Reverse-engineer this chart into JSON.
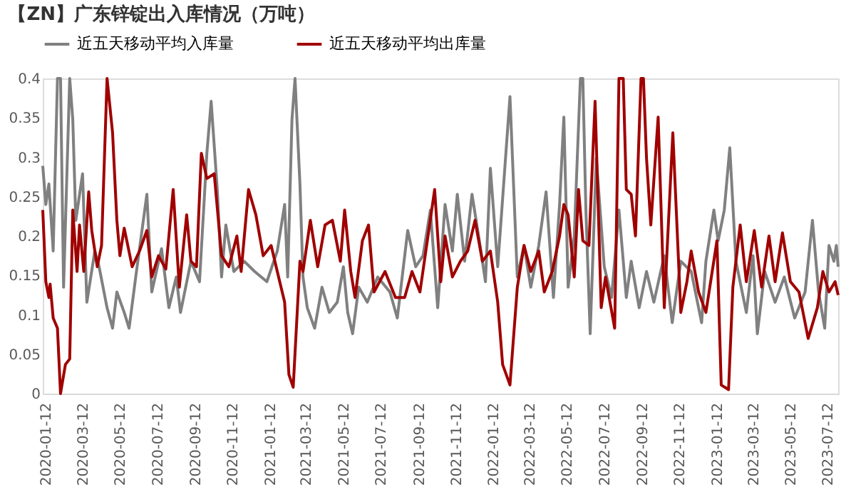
{
  "chart_data": {
    "type": "line",
    "title": "【ZN】广东锌锭出入库情况（万吨）",
    "legend": "top",
    "grid": false,
    "xlim": [
      "2020-01-07",
      "2023-07-29"
    ],
    "xticks": [
      "2020-01-12",
      "2020-03-12",
      "2020-05-12",
      "2020-07-12",
      "2020-09-12",
      "2020-11-12",
      "2021-01-12",
      "2021-03-12",
      "2021-05-12",
      "2021-07-12",
      "2021-09-12",
      "2021-11-12",
      "2022-01-12",
      "2022-03-12",
      "2022-05-12",
      "2022-07-12",
      "2022-09-12",
      "2022-11-12",
      "2023-01-12",
      "2023-03-12",
      "2023-05-12",
      "2023-07-12"
    ],
    "ylim": [
      0,
      0.4
    ],
    "yticks": [
      0,
      0.05,
      0.1,
      0.15,
      0.2,
      0.25,
      0.3,
      0.35,
      0.4
    ],
    "series": [
      {
        "name": "近五天移动平均入库量",
        "color": "#808080",
        "x": [
          "2020-01-07",
          "2020-01-12",
          "2020-01-17",
          "2020-01-24",
          "2020-01-31",
          "2020-02-05",
          "2020-02-10",
          "2020-02-20",
          "2020-02-25",
          "2020-03-01",
          "2020-03-12",
          "2020-03-19",
          "2020-04-01",
          "2020-04-08",
          "2020-04-21",
          "2020-04-30",
          "2020-05-07",
          "2020-05-19",
          "2020-05-27",
          "2020-06-08",
          "2020-06-25",
          "2020-07-03",
          "2020-07-19",
          "2020-07-31",
          "2020-08-12",
          "2020-08-19",
          "2020-09-05",
          "2020-09-19",
          "2020-10-01",
          "2020-10-08",
          "2020-10-18",
          "2020-10-25",
          "2020-11-01",
          "2020-11-14",
          "2020-12-01",
          "2020-12-18",
          "2021-01-07",
          "2021-01-24",
          "2021-02-05",
          "2021-02-10",
          "2021-02-17",
          "2021-02-22",
          "2021-03-02",
          "2021-03-07",
          "2021-03-14",
          "2021-03-26",
          "2021-04-07",
          "2021-04-19",
          "2021-05-02",
          "2021-05-12",
          "2021-05-19",
          "2021-05-27",
          "2021-06-06",
          "2021-06-20",
          "2021-07-07",
          "2021-07-27",
          "2021-08-08",
          "2021-08-25",
          "2021-09-07",
          "2021-09-19",
          "2021-10-01",
          "2021-10-13",
          "2021-10-25",
          "2021-11-06",
          "2021-11-14",
          "2021-11-26",
          "2021-12-08",
          "2021-12-20",
          "2021-12-30",
          "2022-01-07",
          "2022-01-19",
          "2022-02-08",
          "2022-02-20",
          "2022-03-03",
          "2022-03-14",
          "2022-03-27",
          "2022-04-08",
          "2022-04-20",
          "2022-04-30",
          "2022-05-07",
          "2022-05-14",
          "2022-05-24",
          "2022-06-03",
          "2022-06-07",
          "2022-06-12",
          "2022-06-19",
          "2022-06-29",
          "2022-07-12",
          "2022-07-24",
          "2022-08-05",
          "2022-08-17",
          "2022-08-25",
          "2022-09-07",
          "2022-09-19",
          "2022-10-01",
          "2022-10-18",
          "2022-10-31",
          "2022-11-14",
          "2022-12-01",
          "2022-12-18",
          "2022-12-25",
          "2023-01-07",
          "2023-01-14",
          "2023-01-24",
          "2023-02-02",
          "2023-02-12",
          "2023-03-01",
          "2023-03-12",
          "2023-03-19",
          "2023-03-31",
          "2023-04-17",
          "2023-05-02",
          "2023-05-19",
          "2023-06-05",
          "2023-06-17",
          "2023-06-27",
          "2023-07-07",
          "2023-07-14",
          "2023-07-22",
          "2023-07-26",
          "2023-07-29"
        ],
        "values": [
          0.289,
          0.24,
          0.266,
          0.181,
          0.4,
          0.4,
          0.135,
          0.4,
          0.348,
          0.22,
          0.279,
          0.116,
          0.181,
          0.161,
          0.109,
          0.083,
          0.129,
          0.103,
          0.083,
          0.155,
          0.253,
          0.129,
          0.184,
          0.109,
          0.148,
          0.103,
          0.168,
          0.142,
          0.305,
          0.371,
          0.259,
          0.148,
          0.214,
          0.155,
          0.168,
          0.155,
          0.142,
          0.181,
          0.24,
          0.148,
          0.348,
          0.4,
          0.266,
          0.148,
          0.109,
          0.083,
          0.135,
          0.103,
          0.116,
          0.161,
          0.103,
          0.076,
          0.135,
          0.116,
          0.148,
          0.129,
          0.096,
          0.207,
          0.161,
          0.175,
          0.233,
          0.109,
          0.24,
          0.181,
          0.253,
          0.168,
          0.253,
          0.194,
          0.142,
          0.286,
          0.161,
          0.377,
          0.148,
          0.188,
          0.135,
          0.188,
          0.256,
          0.122,
          0.24,
          0.351,
          0.135,
          0.2,
          0.4,
          0.4,
          0.233,
          0.076,
          0.299,
          0.161,
          0.122,
          0.233,
          0.122,
          0.168,
          0.109,
          0.155,
          0.116,
          0.175,
          0.09,
          0.168,
          0.155,
          0.09,
          0.168,
          0.233,
          0.194,
          0.233,
          0.312,
          0.168,
          0.103,
          0.175,
          0.076,
          0.155,
          0.116,
          0.148,
          0.096,
          0.129,
          0.22,
          0.129,
          0.083,
          0.188,
          0.168,
          0.188,
          0.161
        ]
      },
      {
        "name": "近五天移动平均出库量",
        "color": "#a00000",
        "x": [
          "2020-01-07",
          "2020-01-12",
          "2020-01-17",
          "2020-01-19",
          "2020-01-24",
          "2020-01-31",
          "2020-02-05",
          "2020-02-13",
          "2020-02-20",
          "2020-02-25",
          "2020-03-03",
          "2020-03-07",
          "2020-03-14",
          "2020-03-22",
          "2020-03-27",
          "2020-04-05",
          "2020-04-12",
          "2020-04-21",
          "2020-04-30",
          "2020-05-07",
          "2020-05-12",
          "2020-05-19",
          "2020-06-01",
          "2020-06-13",
          "2020-06-25",
          "2020-07-03",
          "2020-07-14",
          "2020-07-26",
          "2020-08-07",
          "2020-08-17",
          "2020-08-29",
          "2020-09-05",
          "2020-09-14",
          "2020-09-22",
          "2020-10-01",
          "2020-10-13",
          "2020-10-25",
          "2020-11-06",
          "2020-11-19",
          "2020-11-26",
          "2020-12-08",
          "2020-12-20",
          "2021-01-01",
          "2021-01-14",
          "2021-01-24",
          "2021-02-05",
          "2021-02-12",
          "2021-02-19",
          "2021-03-02",
          "2021-03-07",
          "2021-03-19",
          "2021-03-31",
          "2021-04-12",
          "2021-04-24",
          "2021-05-07",
          "2021-05-14",
          "2021-05-24",
          "2021-05-31",
          "2021-06-12",
          "2021-06-22",
          "2021-07-01",
          "2021-07-19",
          "2021-08-05",
          "2021-08-20",
          "2021-09-01",
          "2021-09-14",
          "2021-09-26",
          "2021-10-08",
          "2021-10-18",
          "2021-10-25",
          "2021-11-06",
          "2021-11-19",
          "2021-12-01",
          "2021-12-13",
          "2021-12-25",
          "2022-01-07",
          "2022-01-19",
          "2022-01-27",
          "2022-02-08",
          "2022-02-20",
          "2022-03-03",
          "2022-03-14",
          "2022-03-27",
          "2022-04-05",
          "2022-04-18",
          "2022-04-30",
          "2022-05-07",
          "2022-05-14",
          "2022-05-24",
          "2022-05-31",
          "2022-06-07",
          "2022-06-17",
          "2022-06-27",
          "2022-07-07",
          "2022-07-14",
          "2022-07-29",
          "2022-08-05",
          "2022-08-12",
          "2022-08-17",
          "2022-08-25",
          "2022-09-01",
          "2022-09-10",
          "2022-09-14",
          "2022-09-19",
          "2022-09-26",
          "2022-10-08",
          "2022-10-18",
          "2022-11-01",
          "2022-11-14",
          "2022-11-24",
          "2022-12-01",
          "2022-12-13",
          "2022-12-25",
          "2023-01-12",
          "2023-01-19",
          "2023-01-31",
          "2023-02-07",
          "2023-02-19",
          "2023-03-01",
          "2023-03-14",
          "2023-03-26",
          "2023-04-07",
          "2023-04-17",
          "2023-04-29",
          "2023-05-12",
          "2023-05-26",
          "2023-06-10",
          "2023-06-25",
          "2023-07-04",
          "2023-07-14",
          "2023-07-24",
          "2023-07-29"
        ],
        "values": [
          0.233,
          0.142,
          0.122,
          0.139,
          0.096,
          0.083,
          0,
          0.037,
          0.044,
          0.233,
          0.155,
          0.214,
          0.155,
          0.256,
          0.207,
          0.161,
          0.188,
          0.4,
          0.331,
          0.22,
          0.175,
          0.21,
          0.161,
          0.181,
          0.207,
          0.148,
          0.175,
          0.158,
          0.259,
          0.135,
          0.227,
          0.168,
          0.161,
          0.305,
          0.273,
          0.279,
          0.175,
          0.161,
          0.2,
          0.155,
          0.259,
          0.227,
          0.175,
          0.188,
          0.155,
          0.116,
          0.024,
          0.008,
          0.168,
          0.155,
          0.22,
          0.161,
          0.214,
          0.22,
          0.168,
          0.233,
          0.155,
          0.122,
          0.194,
          0.214,
          0.129,
          0.155,
          0.122,
          0.122,
          0.155,
          0.129,
          0.194,
          0.259,
          0.142,
          0.2,
          0.148,
          0.168,
          0.181,
          0.22,
          0.168,
          0.181,
          0.116,
          0.037,
          0.011,
          0.135,
          0.188,
          0.155,
          0.181,
          0.129,
          0.155,
          0.2,
          0.24,
          0.227,
          0.148,
          0.259,
          0.194,
          0.188,
          0.371,
          0.109,
          0.148,
          0.083,
          0.4,
          0.4,
          0.259,
          0.253,
          0.2,
          0.4,
          0.4,
          0.299,
          0.214,
          0.351,
          0.109,
          0.331,
          0.103,
          0.142,
          0.181,
          0.129,
          0.103,
          0.194,
          0.011,
          0.005,
          0.135,
          0.214,
          0.142,
          0.207,
          0.135,
          0.2,
          0.142,
          0.204,
          0.142,
          0.129,
          0.07,
          0.109,
          0.155,
          0.129,
          0.142,
          0.125
        ]
      }
    ]
  }
}
